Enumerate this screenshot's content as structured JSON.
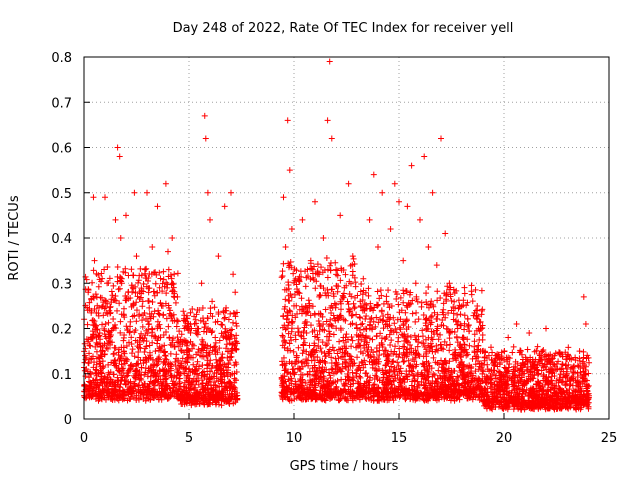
{
  "chart_data": {
    "type": "scatter",
    "title": "Day 248 of 2022, Rate Of TEC Index for receiver yell",
    "xlabel": "GPS time / hours",
    "ylabel": "ROTI / TECUs",
    "xlim": [
      0,
      25
    ],
    "ylim": [
      0,
      0.8
    ],
    "xticks": [
      0,
      5,
      10,
      15,
      20,
      25
    ],
    "yticks": [
      0,
      0.1,
      0.2,
      0.3,
      0.4,
      0.5,
      0.6,
      0.7,
      0.8
    ],
    "grid": true,
    "marker": "+",
    "color": "#ff0000",
    "data_gap_hours": [
      7.3,
      9.4
    ],
    "series": [
      {
        "x": [
          0.05,
          0.2,
          0.3,
          0.45,
          0.5,
          0.6,
          0.75,
          0.9,
          1.0,
          1.1,
          1.25,
          1.4,
          1.5,
          1.6,
          1.7,
          1.75,
          1.8,
          1.9,
          2.0,
          2.1,
          2.25,
          2.4,
          2.5,
          2.65,
          2.8,
          2.9,
          3.0,
          3.1,
          3.25,
          3.4,
          3.5,
          3.6,
          3.75,
          3.9,
          4.0,
          4.1,
          4.2,
          4.3,
          4.45,
          4.6,
          4.8,
          5.0,
          5.2,
          5.4,
          5.6,
          5.75,
          5.8,
          5.9,
          6.0,
          6.1,
          6.25,
          6.4,
          6.5,
          6.7,
          6.9,
          7.0,
          7.1,
          7.2,
          9.5,
          9.6,
          9.7,
          9.8,
          9.9,
          10.0,
          10.2,
          10.4,
          10.6,
          10.8,
          11.0,
          11.2,
          11.4,
          11.6,
          11.7,
          11.8,
          12.0,
          12.2,
          12.4,
          12.6,
          12.8,
          13.0,
          13.3,
          13.6,
          13.8,
          14.0,
          14.2,
          14.4,
          14.6,
          14.8,
          15.0,
          15.2,
          15.4,
          15.6,
          15.8,
          16.0,
          16.2,
          16.4,
          16.6,
          16.8,
          17.0,
          17.2,
          17.4,
          17.6,
          17.8,
          18.0,
          18.2,
          18.4,
          18.6,
          18.8,
          19.2,
          19.4,
          19.6,
          19.8,
          20.0,
          20.2,
          20.4,
          20.6,
          20.8,
          21.0,
          21.2,
          21.4,
          21.6,
          21.8,
          22.0,
          22.2,
          22.4,
          22.6,
          22.8,
          23.0,
          23.2,
          23.4,
          23.6,
          23.8,
          23.9
        ],
        "y": [
          0.14,
          0.28,
          0.1,
          0.49,
          0.35,
          0.12,
          0.19,
          0.25,
          0.49,
          0.3,
          0.17,
          0.2,
          0.44,
          0.6,
          0.58,
          0.4,
          0.31,
          0.15,
          0.45,
          0.28,
          0.12,
          0.5,
          0.36,
          0.18,
          0.26,
          0.33,
          0.5,
          0.21,
          0.38,
          0.15,
          0.47,
          0.29,
          0.11,
          0.52,
          0.37,
          0.24,
          0.4,
          0.16,
          0.27,
          0.1,
          0.08,
          0.15,
          0.12,
          0.2,
          0.3,
          0.67,
          0.62,
          0.5,
          0.44,
          0.26,
          0.18,
          0.36,
          0.13,
          0.47,
          0.22,
          0.5,
          0.32,
          0.28,
          0.49,
          0.38,
          0.66,
          0.55,
          0.42,
          0.25,
          0.31,
          0.44,
          0.19,
          0.35,
          0.48,
          0.27,
          0.4,
          0.66,
          0.79,
          0.62,
          0.33,
          0.45,
          0.29,
          0.52,
          0.36,
          0.2,
          0.31,
          0.44,
          0.54,
          0.38,
          0.5,
          0.26,
          0.42,
          0.52,
          0.48,
          0.35,
          0.47,
          0.56,
          0.3,
          0.44,
          0.58,
          0.38,
          0.5,
          0.34,
          0.62,
          0.41,
          0.3,
          0.22,
          0.17,
          0.12,
          0.14,
          0.1,
          0.15,
          0.11,
          0.12,
          0.09,
          0.14,
          0.08,
          0.13,
          0.18,
          0.1,
          0.21,
          0.15,
          0.12,
          0.19,
          0.09,
          0.16,
          0.13,
          0.2,
          0.11,
          0.14,
          0.08,
          0.12,
          0.1,
          0.09,
          0.13,
          0.15,
          0.27,
          0.21
        ]
      }
    ]
  }
}
